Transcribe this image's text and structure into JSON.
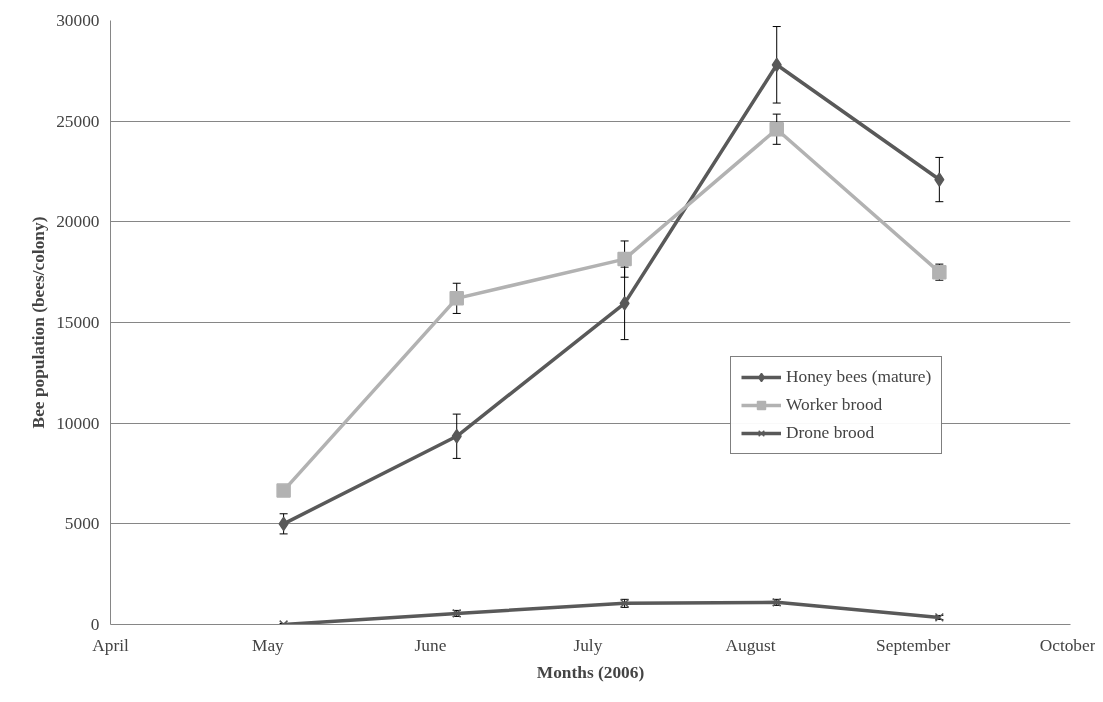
{
  "chart_data": {
    "type": "line",
    "xlabel": "Months (2006)",
    "ylabel": "Bee population (bees/colony)",
    "x": [
      "2006-05-04",
      "2006-06-06",
      "2006-07-08",
      "2006-08-06",
      "2006-09-06"
    ],
    "series": [
      {
        "name": "Honey bees (mature)",
        "color": "#595959",
        "marker": "diamond",
        "values": [
          5000,
          9350,
          15950,
          27800,
          22100
        ],
        "errors": [
          500,
          1100,
          1800,
          1900,
          1100
        ]
      },
      {
        "name": "Worker brood",
        "color": "#b2b2b2",
        "marker": "square",
        "values": [
          6650,
          16200,
          18150,
          24600,
          17500
        ],
        "errors": [
          null,
          750,
          900,
          750,
          400
        ]
      },
      {
        "name": "Drone brood",
        "color": "#595959",
        "marker": "cross",
        "values": [
          0,
          550,
          1050,
          1100,
          350
        ],
        "errors": [
          50,
          150,
          200,
          150,
          100
        ]
      }
    ],
    "xlim": [
      "2006-04-01",
      "2006-10-01"
    ],
    "xticks": [
      {
        "value": "2006-04-01",
        "label": "April"
      },
      {
        "value": "2006-05-01",
        "label": "May"
      },
      {
        "value": "2006-06-01",
        "label": "June"
      },
      {
        "value": "2006-07-01",
        "label": "July"
      },
      {
        "value": "2006-08-01",
        "label": "August"
      },
      {
        "value": "2006-09-01",
        "label": "September"
      },
      {
        "value": "2006-10-01",
        "label": "October"
      }
    ],
    "ylim": [
      0,
      30000
    ],
    "yticks": [
      0,
      5000,
      10000,
      15000,
      20000,
      25000,
      30000
    ],
    "grid": "y",
    "legend": "right",
    "line_style": "solid"
  }
}
